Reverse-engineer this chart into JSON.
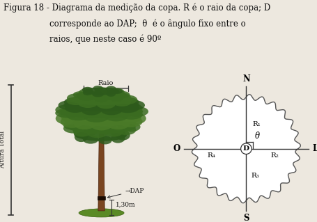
{
  "title_line1": "Figura 18 - Diagrama da medição da copa. R é o raio da copa; D",
  "title_line2": "corresponde ao DAP;  θ  é o ângulo fixo entre o",
  "title_line3": "raios, que neste caso é 90º",
  "bg_color": "#ede8df",
  "compass_labels": [
    "N",
    "S",
    "O",
    "L"
  ],
  "radii_labels": [
    "R₁",
    "R₂",
    "R₃",
    "R₄"
  ],
  "center_label": "D",
  "angle_label": "θ",
  "altura_total_label": "Altura Total",
  "raio_label": "Raio",
  "dap_label": "→DAP",
  "height_label": "1,30m",
  "line_color": "#333333",
  "wavy_color": "#555555",
  "font_size_title": 8.5,
  "font_size_diagram": 8,
  "font_size_small": 7,
  "tree_bg": "#ede8df",
  "canopy_colors": [
    "#2d5a1b",
    "#3a6b20",
    "#4a7a28",
    "#3d6e22"
  ],
  "trunk_color": "#7a4520",
  "trunk_dark": "#4a2510",
  "dap_band_color": "#1a0a00",
  "ground_color": "#5a8a25",
  "r_base": 1.1,
  "n_waves": 26,
  "amplitude": 0.055
}
